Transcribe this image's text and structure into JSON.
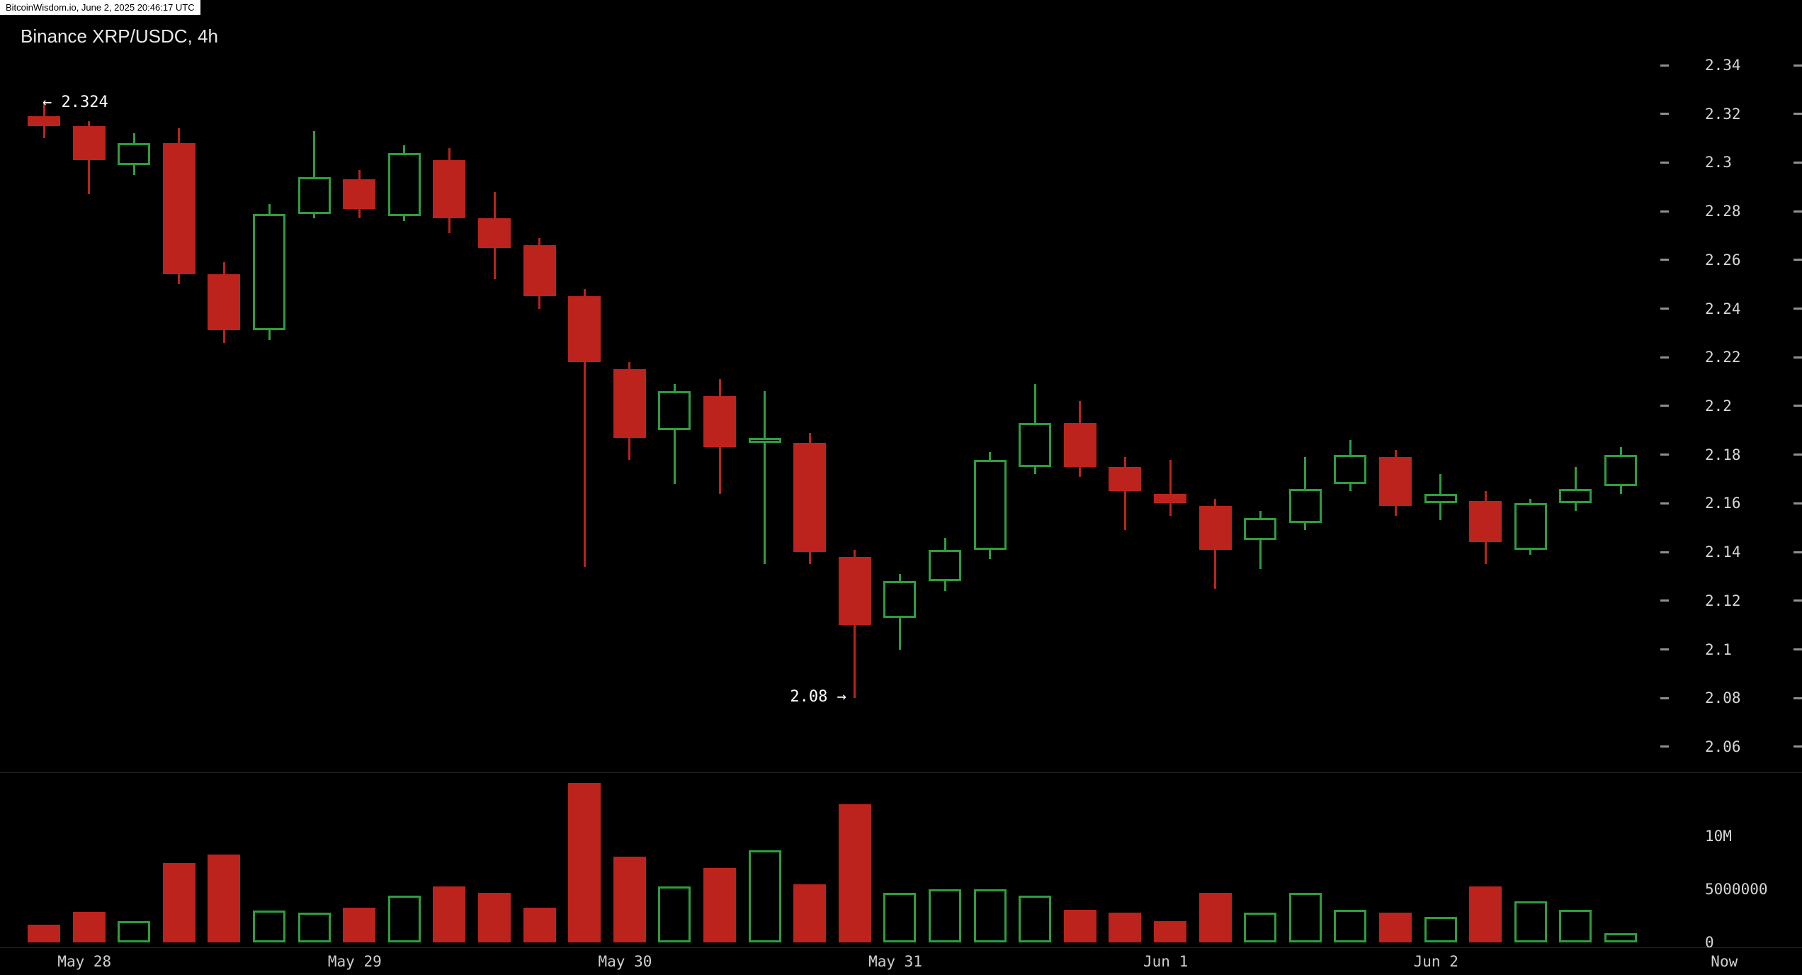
{
  "overlay": {
    "watermark": "BitcoinWisdom.io, June 2, 2025 20:46:17 UTC"
  },
  "header": {
    "title": "Binance XRP/USDC, 4h"
  },
  "annotations": {
    "high": {
      "label": "← 2.324",
      "value": 2.324,
      "candle_index": 0
    },
    "low": {
      "label": "2.08 →",
      "value": 2.08,
      "candle_index": 18
    }
  },
  "colors": {
    "up": "#2e9e3f",
    "down": "#bb231c",
    "axis_text": "#d6d6d6",
    "tick": "#8f8f8f",
    "background": "#000000",
    "watermark_bg": "#ffffff"
  },
  "chart_data": {
    "type": "candlestick",
    "title": "Binance XRP/USDC, 4h",
    "symbol": "XRP/USDC",
    "exchange": "Binance",
    "interval": "4h",
    "marked_high": 2.324,
    "marked_low": 2.08,
    "price_axis": {
      "min": 2.06,
      "max": 2.34,
      "labels": [
        {
          "text": "2.34",
          "value": 2.34
        },
        {
          "text": "2.32",
          "value": 2.32
        },
        {
          "text": "2.3",
          "value": 2.3
        },
        {
          "text": "2.28",
          "value": 2.28
        },
        {
          "text": "2.26",
          "value": 2.26
        },
        {
          "text": "2.24",
          "value": 2.24
        },
        {
          "text": "2.22",
          "value": 2.22
        },
        {
          "text": "2.2",
          "value": 2.2
        },
        {
          "text": "2.18",
          "value": 2.18
        },
        {
          "text": "2.16",
          "value": 2.16
        },
        {
          "text": "2.14",
          "value": 2.14
        },
        {
          "text": "2.12",
          "value": 2.12
        },
        {
          "text": "2.1",
          "value": 2.1
        },
        {
          "text": "2.08",
          "value": 2.08
        },
        {
          "text": "2.06",
          "value": 2.06
        }
      ]
    },
    "volume_axis": {
      "labels": [
        {
          "text": "10M",
          "value": 10000000
        },
        {
          "text": "5000000",
          "value": 5000000
        },
        {
          "text": "0",
          "value": 0
        }
      ]
    },
    "x_axis": {
      "labels": [
        {
          "text": "May 28",
          "index": 0.9
        },
        {
          "text": "May 29",
          "index": 6.9
        },
        {
          "text": "May 30",
          "index": 12.9
        },
        {
          "text": "May 31",
          "index": 18.9
        },
        {
          "text": "Jun 1",
          "index": 24.9
        },
        {
          "text": "Jun 2",
          "index": 30.9
        },
        {
          "text": "Now",
          "index": 37.3
        }
      ]
    },
    "candles": [
      {
        "o": 2.319,
        "h": 2.324,
        "l": 2.31,
        "c": 2.315,
        "v": 1700000
      },
      {
        "o": 2.315,
        "h": 2.317,
        "l": 2.287,
        "c": 2.301,
        "v": 2900000
      },
      {
        "o": 2.299,
        "h": 2.312,
        "l": 2.295,
        "c": 2.308,
        "v": 2000000
      },
      {
        "o": 2.308,
        "h": 2.314,
        "l": 2.25,
        "c": 2.254,
        "v": 7500000
      },
      {
        "o": 2.254,
        "h": 2.259,
        "l": 2.226,
        "c": 2.231,
        "v": 8300000
      },
      {
        "o": 2.231,
        "h": 2.283,
        "l": 2.227,
        "c": 2.279,
        "v": 3000000
      },
      {
        "o": 2.279,
        "h": 2.313,
        "l": 2.277,
        "c": 2.294,
        "v": 2800000
      },
      {
        "o": 2.293,
        "h": 2.297,
        "l": 2.277,
        "c": 2.281,
        "v": 3300000
      },
      {
        "o": 2.278,
        "h": 2.307,
        "l": 2.276,
        "c": 2.304,
        "v": 4400000
      },
      {
        "o": 2.301,
        "h": 2.306,
        "l": 2.271,
        "c": 2.277,
        "v": 5300000
      },
      {
        "o": 2.277,
        "h": 2.288,
        "l": 2.252,
        "c": 2.265,
        "v": 4700000
      },
      {
        "o": 2.266,
        "h": 2.269,
        "l": 2.24,
        "c": 2.245,
        "v": 3300000
      },
      {
        "o": 2.245,
        "h": 2.248,
        "l": 2.134,
        "c": 2.218,
        "v": 15000000
      },
      {
        "o": 2.215,
        "h": 2.218,
        "l": 2.178,
        "c": 2.187,
        "v": 8100000
      },
      {
        "o": 2.19,
        "h": 2.209,
        "l": 2.168,
        "c": 2.206,
        "v": 5300000
      },
      {
        "o": 2.204,
        "h": 2.211,
        "l": 2.164,
        "c": 2.183,
        "v": 7000000
      },
      {
        "o": 2.185,
        "h": 2.206,
        "l": 2.135,
        "c": 2.187,
        "v": 8700000
      },
      {
        "o": 2.185,
        "h": 2.189,
        "l": 2.135,
        "c": 2.14,
        "v": 5500000
      },
      {
        "o": 2.138,
        "h": 2.141,
        "l": 2.08,
        "c": 2.11,
        "v": 13000000
      },
      {
        "o": 2.113,
        "h": 2.131,
        "l": 2.1,
        "c": 2.128,
        "v": 4700000
      },
      {
        "o": 2.128,
        "h": 2.146,
        "l": 2.124,
        "c": 2.141,
        "v": 5000000
      },
      {
        "o": 2.141,
        "h": 2.181,
        "l": 2.137,
        "c": 2.178,
        "v": 5000000
      },
      {
        "o": 2.175,
        "h": 2.209,
        "l": 2.172,
        "c": 2.193,
        "v": 4400000
      },
      {
        "o": 2.193,
        "h": 2.202,
        "l": 2.171,
        "c": 2.175,
        "v": 3100000
      },
      {
        "o": 2.175,
        "h": 2.179,
        "l": 2.149,
        "c": 2.165,
        "v": 2800000
      },
      {
        "o": 2.164,
        "h": 2.178,
        "l": 2.155,
        "c": 2.16,
        "v": 2000000
      },
      {
        "o": 2.159,
        "h": 2.162,
        "l": 2.125,
        "c": 2.141,
        "v": 4700000
      },
      {
        "o": 2.145,
        "h": 2.157,
        "l": 2.133,
        "c": 2.154,
        "v": 2800000
      },
      {
        "o": 2.152,
        "h": 2.179,
        "l": 2.149,
        "c": 2.166,
        "v": 4700000
      },
      {
        "o": 2.168,
        "h": 2.186,
        "l": 2.165,
        "c": 2.18,
        "v": 3100000
      },
      {
        "o": 2.179,
        "h": 2.182,
        "l": 2.155,
        "c": 2.159,
        "v": 2800000
      },
      {
        "o": 2.16,
        "h": 2.172,
        "l": 2.153,
        "c": 2.164,
        "v": 2400000
      },
      {
        "o": 2.161,
        "h": 2.165,
        "l": 2.135,
        "c": 2.144,
        "v": 5300000
      },
      {
        "o": 2.141,
        "h": 2.162,
        "l": 2.139,
        "c": 2.16,
        "v": 3900000
      },
      {
        "o": 2.16,
        "h": 2.175,
        "l": 2.157,
        "c": 2.166,
        "v": 3100000
      },
      {
        "o": 2.167,
        "h": 2.183,
        "l": 2.164,
        "c": 2.18,
        "v": 900000
      }
    ]
  }
}
